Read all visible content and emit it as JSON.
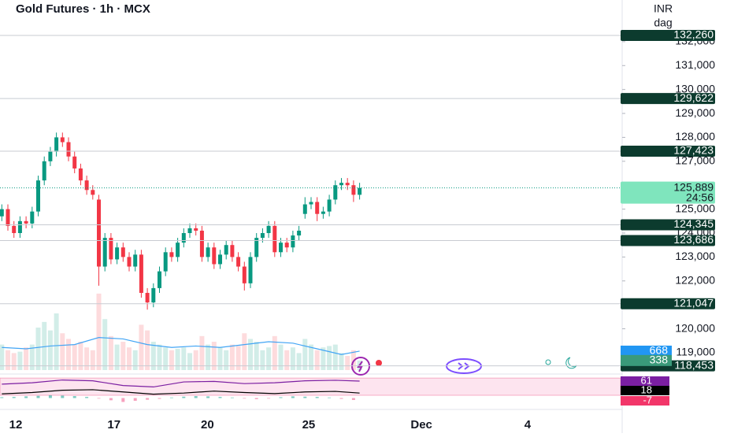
{
  "header": {
    "title": "Gold Futures · 1h · MCX",
    "currency": "INR",
    "unit": "dag"
  },
  "chart_data": {
    "type": "candlestick",
    "xlim": [
      -0.3,
      102.3
    ],
    "xticks": [
      {
        "value": 2.3,
        "label": "12"
      },
      {
        "value": 18.5,
        "label": "17"
      },
      {
        "value": 33.9,
        "label": "20"
      },
      {
        "value": 50.6,
        "label": "25"
      },
      {
        "value": 69.2,
        "label": "Dec"
      },
      {
        "value": 86.7,
        "label": "4"
      }
    ],
    "ylim": [
      118110,
      133740
    ],
    "yticks": [
      {
        "value": 132000,
        "label": "132,000"
      },
      {
        "value": 131000,
        "label": "131,000"
      },
      {
        "value": 130000,
        "label": "130,000"
      },
      {
        "value": 129000,
        "label": "129,000"
      },
      {
        "value": 128000,
        "label": "128,000"
      },
      {
        "value": 127000,
        "label": "127,000"
      },
      {
        "value": 125000,
        "label": "125,000"
      },
      {
        "value": 124000,
        "label": "124,000"
      },
      {
        "value": 123000,
        "label": "123,000"
      },
      {
        "value": 122000,
        "label": "122,000"
      },
      {
        "value": 121000,
        "label": "121,000"
      },
      {
        "value": 120000,
        "label": "120,000"
      },
      {
        "value": 119000,
        "label": "119,000"
      }
    ],
    "up_color": "#089981",
    "down_color": "#f23645",
    "open": [
      124700,
      125000,
      124300,
      124000,
      124500,
      124400,
      124900,
      126200,
      127000,
      127400,
      128000,
      127800,
      127200,
      126700,
      126200,
      125800,
      125400,
      122600,
      123800,
      122900,
      123400,
      123000,
      122600,
      123100,
      121500,
      121100,
      121700,
      122400,
      123200,
      123000,
      123600,
      124000,
      124200,
      124100,
      123000,
      123400,
      122700,
      123100,
      123500,
      123000,
      122600,
      121900,
      123000,
      123800,
      124000,
      124300,
      123200,
      123600,
      123400,
      123900,
      124800,
      125200,
      125300,
      124800,
      124900,
      125400,
      126000,
      126100,
      126000,
      125600
    ],
    "high": [
      125200,
      125200,
      124500,
      124700,
      124700,
      125100,
      126400,
      127200,
      127600,
      128200,
      128200,
      128000,
      127400,
      126900,
      126400,
      126000,
      125600,
      124000,
      124000,
      123600,
      123600,
      123200,
      123300,
      123300,
      121700,
      121900,
      122600,
      123400,
      123400,
      123800,
      124200,
      124400,
      124400,
      124300,
      123600,
      123600,
      123300,
      123700,
      123700,
      123200,
      122800,
      123200,
      124000,
      124200,
      124500,
      124500,
      123800,
      123800,
      124100,
      124300,
      125500,
      125500,
      125500,
      125100,
      125600,
      126200,
      126300,
      126300,
      126200,
      126100
    ],
    "low": [
      124500,
      124100,
      123800,
      123800,
      124200,
      124200,
      124700,
      126000,
      126800,
      127200,
      127600,
      127000,
      126500,
      126000,
      125600,
      125400,
      121800,
      122400,
      122700,
      122700,
      122800,
      122400,
      122400,
      121300,
      120800,
      120900,
      121500,
      122200,
      122800,
      122800,
      123400,
      123800,
      123900,
      122800,
      122800,
      122500,
      122500,
      122900,
      122800,
      122400,
      121600,
      121700,
      122800,
      123600,
      123800,
      123000,
      123000,
      123200,
      123200,
      123700,
      124600,
      125000,
      124500,
      124600,
      124700,
      125200,
      125800,
      125800,
      125300,
      125400
    ],
    "close": [
      125000,
      124300,
      124000,
      124500,
      124400,
      124900,
      126200,
      127000,
      127400,
      128000,
      127800,
      127200,
      126700,
      126200,
      125800,
      125600,
      122600,
      123800,
      122900,
      123400,
      123000,
      122600,
      123100,
      121500,
      121100,
      121700,
      122400,
      123200,
      123000,
      123600,
      124000,
      124200,
      124100,
      123000,
      123400,
      122700,
      123100,
      123500,
      123000,
      122600,
      121900,
      123000,
      123800,
      124000,
      124300,
      123200,
      123600,
      123400,
      123900,
      124100,
      125200,
      125300,
      124800,
      124900,
      125400,
      126000,
      126100,
      126000,
      125600,
      125889
    ],
    "levels": [
      {
        "value": 132260,
        "label": "132,260"
      },
      {
        "value": 129622,
        "label": "129,622"
      },
      {
        "value": 127423,
        "label": "127,423"
      },
      {
        "value": 124345,
        "label": "124,345"
      },
      {
        "value": 123686,
        "label": "123,686"
      },
      {
        "value": 121047,
        "label": "121,047"
      },
      {
        "value": 118453,
        "label": "118,453"
      }
    ],
    "last_price": {
      "value": 125889,
      "label": "125,889"
    },
    "countdown": "24:56",
    "volume": {
      "lim": [
        0,
        2780
      ],
      "color": "#9ad0c2",
      "values": [
        900,
        700,
        600,
        650,
        800,
        900,
        1500,
        1700,
        1400,
        2000,
        1300,
        1100,
        900,
        1000,
        800,
        700,
        2700,
        1800,
        1200,
        900,
        1000,
        800,
        700,
        1600,
        1400,
        1000,
        900,
        800,
        700,
        750,
        800,
        600,
        700,
        1200,
        900,
        1000,
        800,
        700,
        900,
        850,
        1300,
        1100,
        1000,
        700,
        800,
        1200,
        900,
        700,
        800,
        600,
        1100,
        900,
        700,
        800,
        850,
        900,
        600,
        500,
        700,
        338
      ],
      "ma_x": [
        0,
        4,
        8,
        12,
        16,
        20,
        24,
        28,
        32,
        36,
        40,
        44,
        48,
        52,
        56,
        59
      ],
      "ma": [
        800,
        750,
        850,
        900,
        1150,
        1100,
        900,
        800,
        850,
        800,
        900,
        1000,
        950,
        750,
        550,
        668
      ],
      "ma_color": "#42a5f5"
    },
    "oscillator": {
      "ylim": [
        -41,
        78
      ],
      "band": [
        10,
        72
      ],
      "x": [
        0,
        5,
        10,
        15,
        20,
        25,
        30,
        35,
        40,
        45,
        50,
        55,
        59
      ],
      "series": [
        {
          "color": "#7b1fa2",
          "values": [
            50,
            55,
            65,
            62,
            45,
            40,
            58,
            60,
            52,
            55,
            62,
            64,
            61
          ]
        },
        {
          "color": "#000000",
          "values": [
            15,
            20,
            28,
            30,
            22,
            14,
            18,
            25,
            20,
            16,
            22,
            24,
            18
          ]
        }
      ],
      "hist_color_up": "#26a69a",
      "hist_color_down": "#f06292",
      "hist": [
        3,
        4,
        6,
        8,
        10,
        9,
        7,
        4,
        -2,
        -8,
        -14,
        -10,
        -6,
        -3,
        2,
        5,
        7,
        6,
        4,
        2,
        -2,
        -4,
        -2,
        3,
        6,
        5,
        4,
        2,
        -3,
        -7
      ]
    }
  }
}
